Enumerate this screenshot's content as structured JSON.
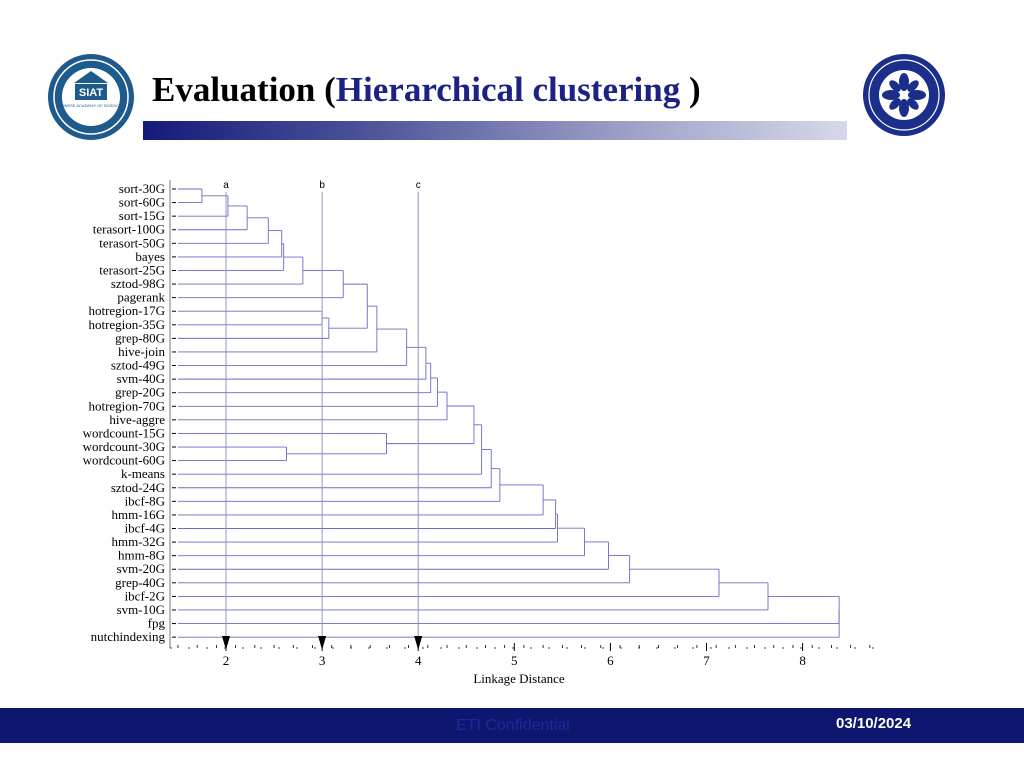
{
  "slide": {
    "title_prefix": "Evaluation (",
    "title_highlight": "Hierarchical clustering",
    "title_suffix": " )",
    "left_logo": {
      "text": "SIAT",
      "caption": "CHINESE ACADEMY OF SCIENCES"
    },
    "footer": {
      "center": "ETI Confidential",
      "date": "03/10/2024"
    }
  },
  "colors": {
    "title_highlight": "#1b2185",
    "footer_bg": "#0e1770",
    "bar_start": "#141a7a",
    "dendrogram_line": "#6a6acc"
  },
  "chart_data": {
    "type": "dendrogram",
    "xlabel": "Linkage Distance",
    "xlim": [
      1.45,
      8.75
    ],
    "xticks": [
      2,
      3,
      4,
      5,
      6,
      7,
      8
    ],
    "leaves": [
      "sort-30G",
      "sort-60G",
      "sort-15G",
      "terasort-100G",
      "terasort-50G",
      "bayes",
      "terasort-25G",
      "sztod-98G",
      "pagerank",
      "hotregion-17G",
      "hotregion-35G",
      "grep-80G",
      "hive-join",
      "sztod-49G",
      "svm-40G",
      "grep-20G",
      "hotregion-70G",
      "hive-aggre",
      "wordcount-15G",
      "wordcount-30G",
      "wordcount-60G",
      "k-means",
      "sztod-24G",
      "ibcf-8G",
      "hmm-16G",
      "ibcf-4G",
      "hmm-32G",
      "hmm-8G",
      "svm-20G",
      "grep-40G",
      "ibcf-2G",
      "svm-10G",
      "fpg",
      "nutchindexing"
    ],
    "cut_lines": [
      {
        "label": "a",
        "x": 2.0
      },
      {
        "label": "b",
        "x": 3.0
      },
      {
        "label": "c",
        "x": 4.0
      }
    ],
    "merges": [
      {
        "a": "L0",
        "b": "L1",
        "h": 1.75
      },
      {
        "a": "N0",
        "b": "L2",
        "h": 2.02
      },
      {
        "a": "N1",
        "b": "L3",
        "h": 2.22
      },
      {
        "a": "N2",
        "b": "L4",
        "h": 2.44
      },
      {
        "a": "N3",
        "b": "L5",
        "h": 2.58
      },
      {
        "a": "N4",
        "b": "L6",
        "h": 2.6
      },
      {
        "a": "N5",
        "b": "L7",
        "h": 2.8
      },
      {
        "a": "N6",
        "b": "L8",
        "h": 3.22
      },
      {
        "a": "L9",
        "b": "L10",
        "h": 3.0
      },
      {
        "a": "N8",
        "b": "L11",
        "h": 3.07
      },
      {
        "a": "N7",
        "b": "N9",
        "h": 3.47
      },
      {
        "a": "N10",
        "b": "L12",
        "h": 3.57
      },
      {
        "a": "N11",
        "b": "L13",
        "h": 3.88
      },
      {
        "a": "N12",
        "b": "L14",
        "h": 4.08
      },
      {
        "a": "N13",
        "b": "L15",
        "h": 4.13
      },
      {
        "a": "N14",
        "b": "L16",
        "h": 4.2
      },
      {
        "a": "N15",
        "b": "L17",
        "h": 4.3
      },
      {
        "a": "L19",
        "b": "L20",
        "h": 2.63
      },
      {
        "a": "L18",
        "b": "N17",
        "h": 3.67
      },
      {
        "a": "N16",
        "b": "N18",
        "h": 4.58
      },
      {
        "a": "N19",
        "b": "L21",
        "h": 4.66
      },
      {
        "a": "N20",
        "b": "L22",
        "h": 4.76
      },
      {
        "a": "N21",
        "b": "L23",
        "h": 4.85
      },
      {
        "a": "N22",
        "b": "L24",
        "h": 5.3
      },
      {
        "a": "N23",
        "b": "L25",
        "h": 5.43
      },
      {
        "a": "N24",
        "b": "L26",
        "h": 5.45
      },
      {
        "a": "N25",
        "b": "L27",
        "h": 5.73
      },
      {
        "a": "N26",
        "b": "L28",
        "h": 5.98
      },
      {
        "a": "N27",
        "b": "L29",
        "h": 6.2
      },
      {
        "a": "N28",
        "b": "L30",
        "h": 7.13
      },
      {
        "a": "N29",
        "b": "L31",
        "h": 7.64
      },
      {
        "a": "N30",
        "b": "L32",
        "h": 8.38
      },
      {
        "a": "N31",
        "b": "L33",
        "h": 8.38
      }
    ]
  }
}
